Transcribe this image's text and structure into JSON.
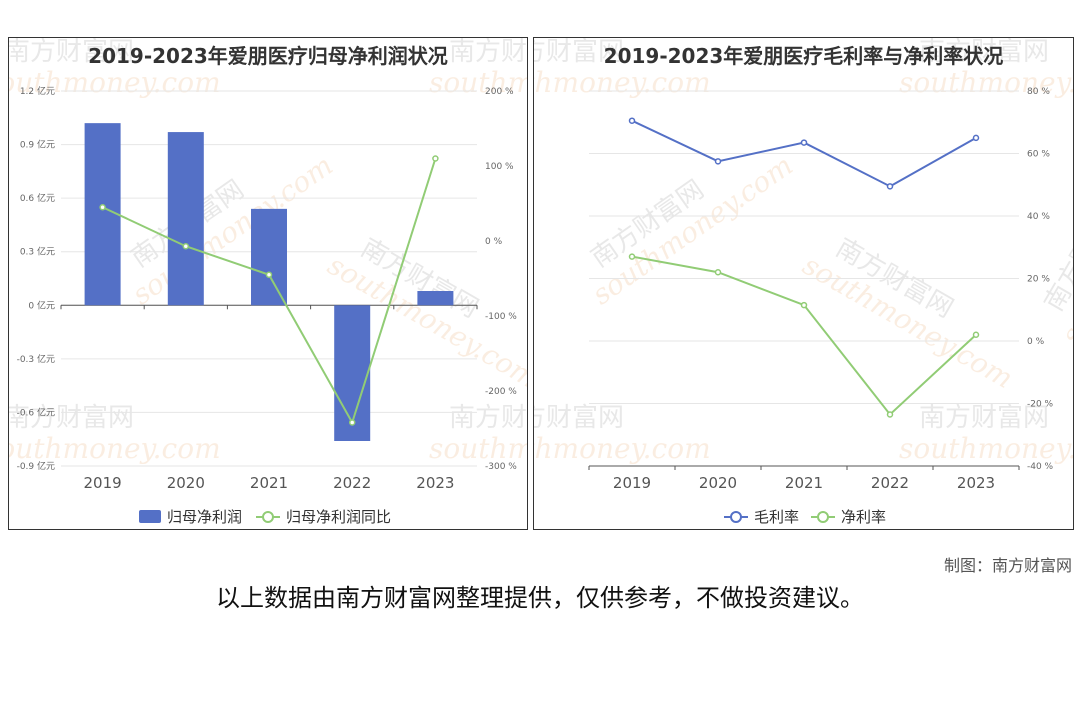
{
  "colors": {
    "bar": "#5470c6",
    "line_green": "#91cc75",
    "line_blue": "#5470c6",
    "grid": "#e6e6e6",
    "watermark": "#e9a25f"
  },
  "watermark": {
    "cn": "南方财富网",
    "en": "southmoney.com"
  },
  "chart_data": [
    {
      "type": "bar",
      "title": "2019-2023年爱朋医疗归母净利润状况",
      "categories": [
        "2019",
        "2020",
        "2021",
        "2022",
        "2023"
      ],
      "left_axis": {
        "ticks": [
          "1.2 亿元",
          "0.9 亿元",
          "0.6 亿元",
          "0.3 亿元",
          "0 亿元",
          "-0.3 亿元",
          "-0.6 亿元",
          "-0.9 亿元"
        ],
        "ylim": [
          -0.9,
          1.2
        ]
      },
      "right_axis": {
        "ticks": [
          "200 %",
          "100 %",
          "0 %",
          "-100 %",
          "-200 %",
          "-300 %"
        ],
        "ylim": [
          -300,
          200
        ]
      },
      "series": [
        {
          "name": "归母净利润",
          "type": "bar",
          "axis": "left",
          "values": [
            1.02,
            0.97,
            0.54,
            -0.76,
            0.08
          ]
        },
        {
          "name": "归母净利润同比",
          "type": "line",
          "axis": "right",
          "values": [
            45,
            -7,
            -45,
            -242,
            110
          ]
        }
      ],
      "grid": true,
      "legend": "bottom"
    },
    {
      "type": "line",
      "title": "2019-2023年爱朋医疗毛利率与净利率状况",
      "categories": [
        "2019",
        "2020",
        "2021",
        "2022",
        "2023"
      ],
      "right_axis": {
        "ticks": [
          "80 %",
          "60 %",
          "40 %",
          "20 %",
          "0 %",
          "-20 %",
          "-40 %"
        ],
        "ylim": [
          -40,
          80
        ]
      },
      "series": [
        {
          "name": "毛利率",
          "values": [
            70.5,
            57.5,
            63.5,
            49.5,
            65
          ]
        },
        {
          "name": "净利率",
          "values": [
            27,
            22,
            11.5,
            -23.5,
            2
          ]
        }
      ],
      "grid": true,
      "legend": "bottom"
    }
  ],
  "footer": {
    "credit": "制图：南方财富网",
    "note": "以上数据由南方财富网整理提供，仅供参考，不做投资建议。"
  }
}
